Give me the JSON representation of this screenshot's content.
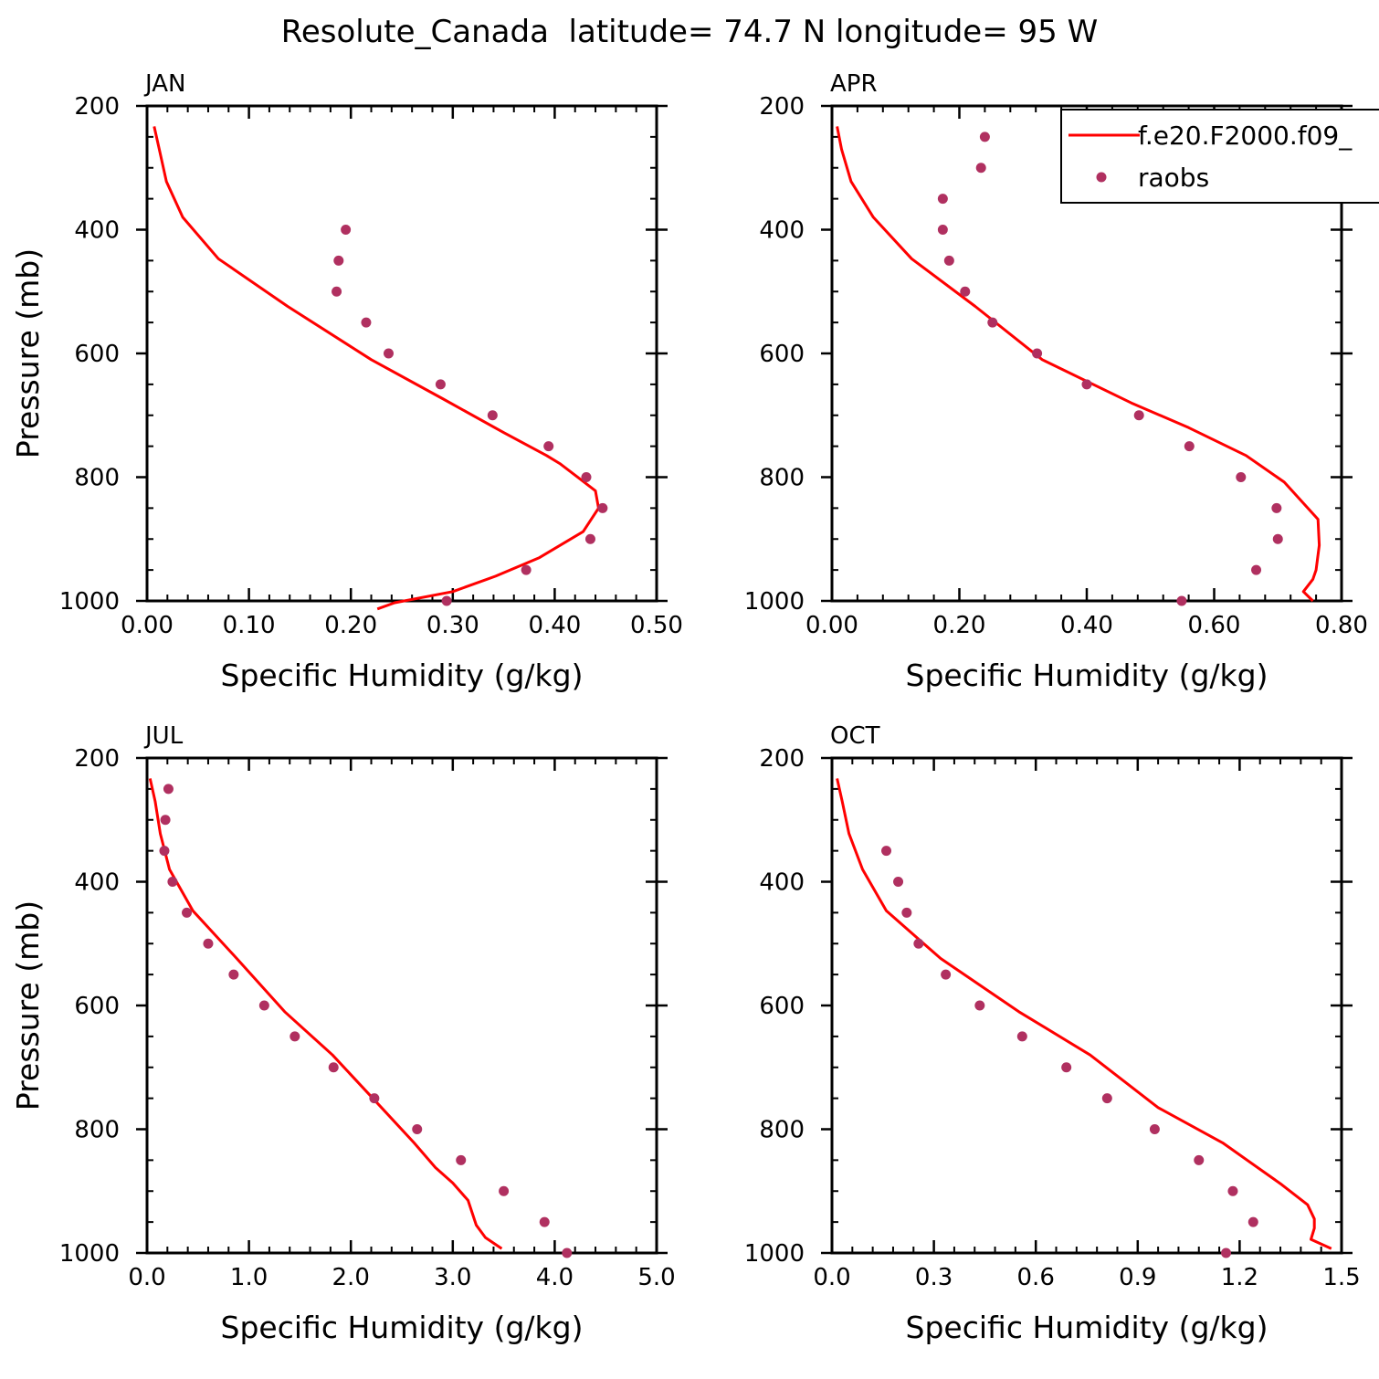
{
  "figure_title": "Resolute_Canada  latitude= 74.7 N longitude= 95 W",
  "legend": {
    "entries": [
      {
        "label": "f.e20.F2000.f09_",
        "kind": "line",
        "color": "#ff0000"
      },
      {
        "label": "raobs",
        "kind": "marker",
        "color": "#b03060"
      }
    ]
  },
  "colors": {
    "model": "#ff0000",
    "obs": "#b03060",
    "axis": "#000000"
  },
  "chart_data": [
    {
      "type": "line",
      "title": "JAN",
      "xlabel": "Specific Humidity (g/kg)",
      "ylabel": "Pressure (mb)",
      "xlim": [
        0,
        0.5
      ],
      "ylim": [
        200,
        1000
      ],
      "y_inverted": false,
      "xticks": [
        0,
        0.1,
        0.2,
        0.3,
        0.4,
        0.5
      ],
      "xtick_labels": [
        "0.00",
        "0.10",
        "0.20",
        "0.30",
        "0.40",
        "0.50"
      ],
      "yticks": [
        200,
        400,
        600,
        800,
        1000
      ],
      "ytick_labels": [
        "200",
        "400",
        "600",
        "800",
        "1000"
      ],
      "series": [
        {
          "name": "f.e20.F2000.f09_",
          "kind": "line",
          "x": [
            0.007,
            0.012,
            0.019,
            0.035,
            0.07,
            0.138,
            0.22,
            0.29,
            0.35,
            0.392,
            0.405,
            0.44,
            0.443,
            0.428,
            0.385,
            0.342,
            0.3,
            0.243,
            0.226
          ],
          "y": [
            233,
            270,
            322,
            380,
            447,
            524,
            610,
            673,
            728,
            765,
            778,
            822,
            850,
            888,
            930,
            960,
            985,
            1003,
            1013
          ]
        },
        {
          "name": "raobs",
          "kind": "scatter",
          "x": [
            0.195,
            0.188,
            0.186,
            0.215,
            0.237,
            0.288,
            0.339,
            0.394,
            0.431,
            0.447,
            0.435,
            0.372,
            0.294
          ],
          "y": [
            400,
            450,
            500,
            550,
            600,
            650,
            700,
            750,
            800,
            850,
            900,
            950,
            1000
          ]
        }
      ]
    },
    {
      "type": "line",
      "title": "APR",
      "xlabel": "Specific Humidity (g/kg)",
      "ylabel": "",
      "xlim": [
        0,
        0.8
      ],
      "ylim": [
        200,
        1000
      ],
      "xticks": [
        0,
        0.2,
        0.4,
        0.6,
        0.8
      ],
      "xtick_labels": [
        "0.00",
        "0.20",
        "0.40",
        "0.60",
        "0.80"
      ],
      "yticks": [
        200,
        400,
        600,
        800,
        1000
      ],
      "ytick_labels": [
        "200",
        "400",
        "600",
        "800",
        "1000"
      ],
      "series": [
        {
          "name": "f.e20.F2000.f09_",
          "kind": "line",
          "x": [
            0.008,
            0.015,
            0.03,
            0.065,
            0.125,
            0.225,
            0.33,
            0.47,
            0.56,
            0.65,
            0.71,
            0.763,
            0.765,
            0.76,
            0.755,
            0.74,
            0.755
          ],
          "y": [
            233,
            270,
            322,
            380,
            447,
            524,
            610,
            680,
            720,
            765,
            808,
            868,
            910,
            950,
            965,
            985,
            1000
          ]
        },
        {
          "name": "raobs",
          "kind": "scatter",
          "x": [
            0.24,
            0.234,
            0.174,
            0.174,
            0.184,
            0.209,
            0.252,
            0.322,
            0.4,
            0.482,
            0.561,
            0.642,
            0.698,
            0.7,
            0.666,
            0.549
          ],
          "y": [
            250,
            300,
            350,
            400,
            450,
            500,
            550,
            600,
            650,
            700,
            750,
            800,
            850,
            900,
            950,
            1000
          ]
        }
      ]
    },
    {
      "type": "line",
      "title": "JUL",
      "xlabel": "Specific Humidity (g/kg)",
      "ylabel": "Pressure (mb)",
      "xlim": [
        0,
        5
      ],
      "ylim": [
        200,
        1000
      ],
      "xticks": [
        0,
        1,
        2,
        3,
        4,
        5
      ],
      "xtick_labels": [
        "0.0",
        "1.0",
        "2.0",
        "3.0",
        "4.0",
        "5.0"
      ],
      "yticks": [
        200,
        400,
        600,
        800,
        1000
      ],
      "ytick_labels": [
        "200",
        "400",
        "600",
        "800",
        "1000"
      ],
      "series": [
        {
          "name": "f.e20.F2000.f09_",
          "kind": "line",
          "x": [
            0.03,
            0.08,
            0.13,
            0.22,
            0.45,
            0.88,
            1.35,
            1.82,
            2.3,
            2.62,
            2.83,
            3.0,
            3.15,
            3.23,
            3.32,
            3.48
          ],
          "y": [
            233,
            270,
            322,
            380,
            447,
            524,
            610,
            680,
            765,
            822,
            862,
            887,
            915,
            955,
            975,
            993
          ]
        },
        {
          "name": "raobs",
          "kind": "scatter",
          "x": [
            0.21,
            0.18,
            0.17,
            0.25,
            0.39,
            0.6,
            0.85,
            1.15,
            1.45,
            1.83,
            2.23,
            2.65,
            3.08,
            3.5,
            3.9,
            4.12
          ],
          "y": [
            250,
            300,
            350,
            400,
            450,
            500,
            550,
            600,
            650,
            700,
            750,
            800,
            850,
            900,
            950,
            1000
          ]
        }
      ]
    },
    {
      "type": "line",
      "title": "OCT",
      "xlabel": "Specific Humidity (g/kg)",
      "ylabel": "",
      "xlim": [
        0,
        1.5
      ],
      "ylim": [
        200,
        1000
      ],
      "xticks": [
        0,
        0.3,
        0.6,
        0.9,
        1.2,
        1.5
      ],
      "xtick_labels": [
        "0.0",
        "0.3",
        "0.6",
        "0.9",
        "1.2",
        "1.5"
      ],
      "yticks": [
        200,
        400,
        600,
        800,
        1000
      ],
      "ytick_labels": [
        "200",
        "400",
        "600",
        "800",
        "1000"
      ],
      "series": [
        {
          "name": "f.e20.F2000.f09_",
          "kind": "line",
          "x": [
            0.015,
            0.03,
            0.05,
            0.09,
            0.16,
            0.32,
            0.55,
            0.76,
            0.96,
            1.15,
            1.32,
            1.4,
            1.42,
            1.42,
            1.41,
            1.47
          ],
          "y": [
            233,
            270,
            322,
            380,
            447,
            524,
            610,
            680,
            765,
            822,
            888,
            922,
            945,
            960,
            978,
            993
          ]
        },
        {
          "name": "raobs",
          "kind": "scatter",
          "x": [
            0.16,
            0.195,
            0.22,
            0.255,
            0.335,
            0.435,
            0.56,
            0.69,
            0.81,
            0.95,
            1.08,
            1.18,
            1.24,
            1.16
          ],
          "y": [
            350,
            400,
            450,
            500,
            550,
            600,
            650,
            700,
            750,
            800,
            850,
            900,
            950,
            1000
          ]
        }
      ]
    }
  ]
}
